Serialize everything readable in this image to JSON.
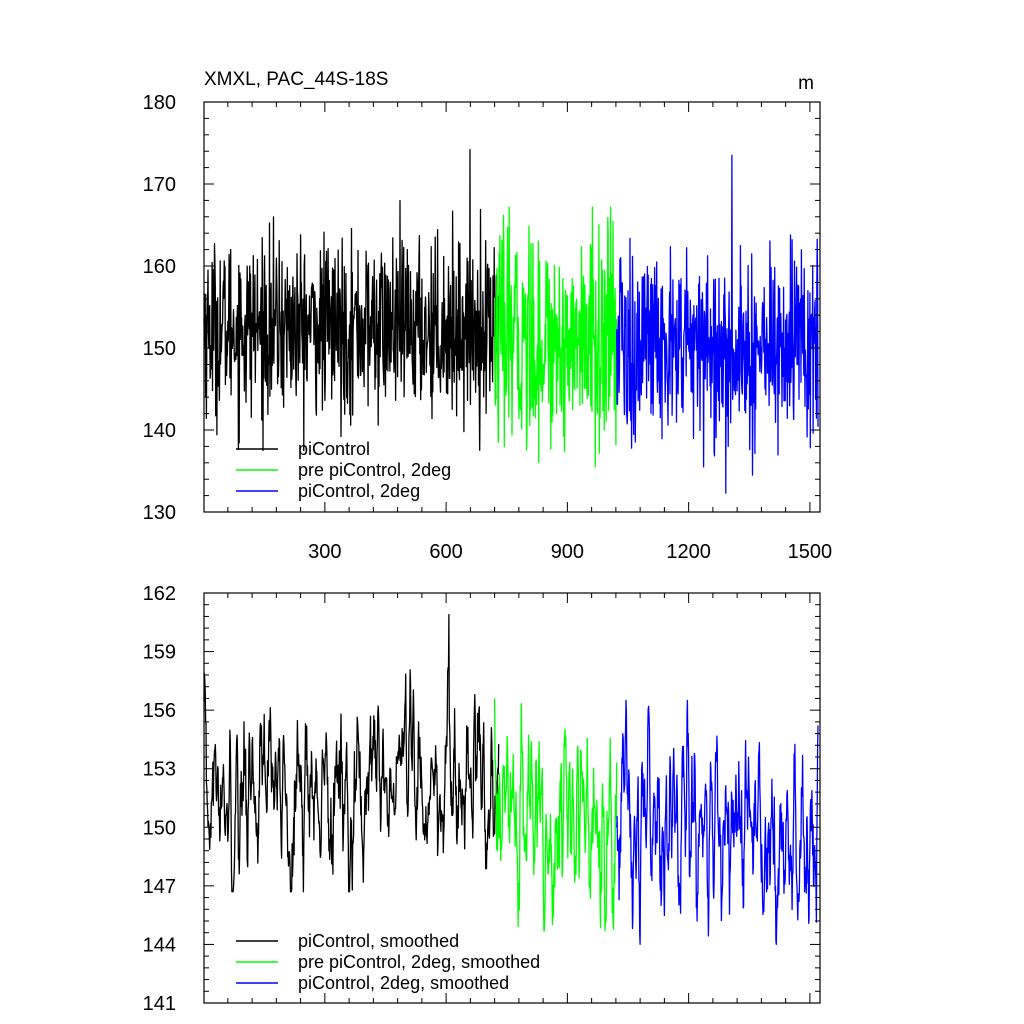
{
  "chart_data": [
    {
      "type": "line",
      "title": "XMXL, PAC_44S-18S",
      "units": "m",
      "xlim": [
        1,
        1525
      ],
      "ylim": [
        130,
        180
      ],
      "x_ticks": [
        "300",
        "600",
        "900",
        "1200",
        "1500"
      ],
      "y_ticks": [
        "130",
        "140",
        "150",
        "160",
        "170",
        "180"
      ],
      "legend_position": "bottom-left",
      "series": [
        {
          "name": "piControl",
          "color": "#000000",
          "x_range": [
            1,
            730
          ],
          "mean": 152.5,
          "std": 5.2,
          "min": 137.5,
          "max": 174.2,
          "smooth": false
        },
        {
          "name": "pre piControl, 2deg",
          "color": "#00ff00",
          "x_range": [
            720,
            1022
          ],
          "mean": 151.0,
          "std": 6.5,
          "min": 135.5,
          "max": 167.2,
          "smooth": false
        },
        {
          "name": "piControl, 2deg",
          "color": "#0000ff",
          "x_range": [
            1022,
            1520
          ],
          "mean": 150.0,
          "std": 6.0,
          "min": 132.3,
          "max": 173.5,
          "smooth": false
        }
      ]
    },
    {
      "type": "line",
      "title": "",
      "xlim": [
        1,
        1525
      ],
      "ylim": [
        141,
        162
      ],
      "x_ticks": [
        "300",
        "600",
        "900",
        "1200",
        "1500"
      ],
      "y_ticks": [
        "141",
        "144",
        "147",
        "150",
        "153",
        "156",
        "159",
        "162"
      ],
      "legend_position": "bottom-left",
      "series": [
        {
          "name": "piControl, smoothed",
          "color": "#000000",
          "x_range": [
            1,
            730
          ],
          "mean": 152.0,
          "std": 2.2,
          "min": 146.7,
          "max": 160.9,
          "smooth": true
        },
        {
          "name": "pre piControl, 2deg, smoothed",
          "color": "#00ff00",
          "x_range": [
            720,
            1022
          ],
          "mean": 150.3,
          "std": 2.4,
          "min": 144.7,
          "max": 156.6,
          "smooth": true
        },
        {
          "name": "piControl, 2deg, smoothed",
          "color": "#0000ff",
          "x_range": [
            1022,
            1520
          ],
          "mean": 149.9,
          "std": 2.4,
          "min": 144.0,
          "max": 156.5,
          "smooth": true
        }
      ]
    }
  ]
}
